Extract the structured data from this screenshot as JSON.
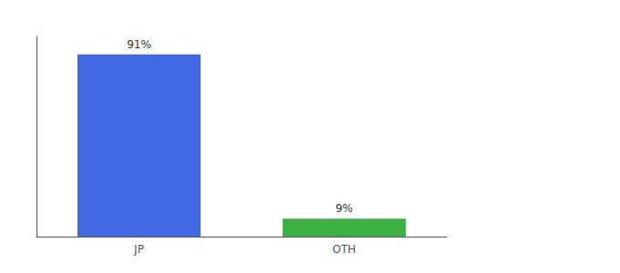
{
  "chart_data": {
    "type": "bar",
    "categories": [
      "JP",
      "OTH"
    ],
    "values": [
      91,
      9
    ],
    "value_labels": [
      "91%",
      "9%"
    ],
    "colors": [
      "#4169e1",
      "#3cb043"
    ],
    "data_labels": true,
    "ylim": [
      0,
      100
    ],
    "tick_labels": "x",
    "grid": false
  }
}
